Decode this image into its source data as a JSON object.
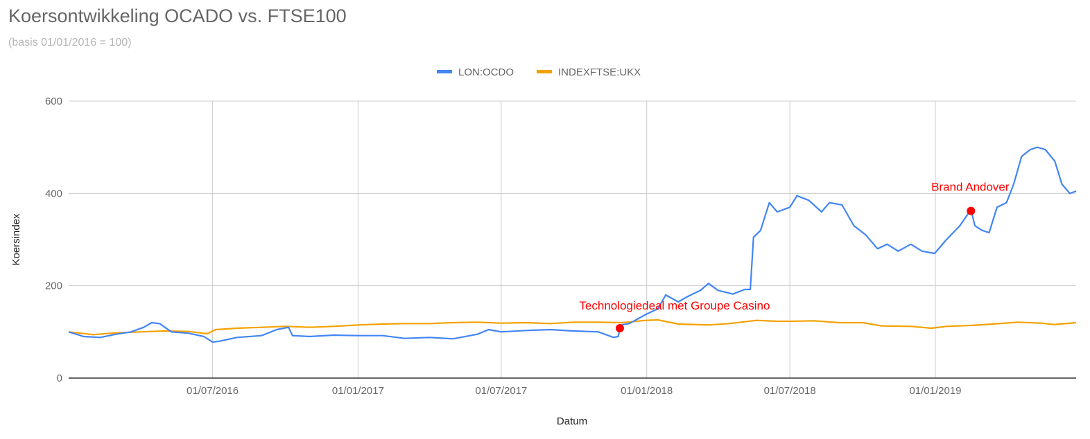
{
  "chart_data": {
    "type": "line",
    "title": "Koersontwikkeling OCADO vs. FTSE100",
    "subtitle": "(basis 01/01/2016 = 100)",
    "xlabel": "Datum",
    "ylabel": "Koersindex",
    "ylim": [
      0,
      600
    ],
    "yticks": [
      0,
      200,
      400,
      600
    ],
    "xlim": [
      "2016-01-01",
      "2019-06-28"
    ],
    "xticks": [
      {
        "date": "2016-07-01",
        "label": "01/07/2016"
      },
      {
        "date": "2017-01-01",
        "label": "01/01/2017"
      },
      {
        "date": "2017-07-01",
        "label": "01/07/2017"
      },
      {
        "date": "2018-01-01",
        "label": "01/01/2018"
      },
      {
        "date": "2018-07-01",
        "label": "01/07/2018"
      },
      {
        "date": "2019-01-01",
        "label": "01/01/2019"
      }
    ],
    "grid": true,
    "legend_position": "top",
    "series": [
      {
        "name": "LON:OCDO",
        "color": "#4285f4",
        "points": [
          [
            "2016-01-01",
            100
          ],
          [
            "2016-01-20",
            90
          ],
          [
            "2016-02-10",
            88
          ],
          [
            "2016-03-01",
            95
          ],
          [
            "2016-03-20",
            100
          ],
          [
            "2016-04-05",
            110
          ],
          [
            "2016-04-15",
            120
          ],
          [
            "2016-04-25",
            118
          ],
          [
            "2016-05-10",
            100
          ],
          [
            "2016-06-01",
            97
          ],
          [
            "2016-06-20",
            90
          ],
          [
            "2016-07-01",
            78
          ],
          [
            "2016-07-10",
            80
          ],
          [
            "2016-08-01",
            88
          ],
          [
            "2016-09-01",
            92
          ],
          [
            "2016-09-20",
            105
          ],
          [
            "2016-10-05",
            110
          ],
          [
            "2016-10-10",
            92
          ],
          [
            "2016-11-01",
            90
          ],
          [
            "2016-12-01",
            93
          ],
          [
            "2017-01-01",
            92
          ],
          [
            "2017-02-01",
            92
          ],
          [
            "2017-03-01",
            86
          ],
          [
            "2017-04-01",
            88
          ],
          [
            "2017-05-01",
            85
          ],
          [
            "2017-06-01",
            95
          ],
          [
            "2017-06-15",
            105
          ],
          [
            "2017-07-01",
            100
          ],
          [
            "2017-08-01",
            103
          ],
          [
            "2017-09-01",
            105
          ],
          [
            "2017-10-01",
            102
          ],
          [
            "2017-11-01",
            100
          ],
          [
            "2017-11-20",
            88
          ],
          [
            "2017-11-26",
            90
          ],
          [
            "2017-11-29",
            115
          ],
          [
            "2017-12-10",
            118
          ],
          [
            "2017-12-31",
            138
          ],
          [
            "2018-01-15",
            150
          ],
          [
            "2018-01-25",
            180
          ],
          [
            "2018-02-10",
            165
          ],
          [
            "2018-02-20",
            175
          ],
          [
            "2018-03-10",
            190
          ],
          [
            "2018-03-20",
            205
          ],
          [
            "2018-04-01",
            190
          ],
          [
            "2018-04-20",
            182
          ],
          [
            "2018-05-05",
            192
          ],
          [
            "2018-05-12",
            192
          ],
          [
            "2018-05-16",
            305
          ],
          [
            "2018-05-25",
            320
          ],
          [
            "2018-06-05",
            380
          ],
          [
            "2018-06-15",
            360
          ],
          [
            "2018-07-01",
            370
          ],
          [
            "2018-07-10",
            395
          ],
          [
            "2018-07-25",
            385
          ],
          [
            "2018-08-10",
            360
          ],
          [
            "2018-08-20",
            380
          ],
          [
            "2018-09-05",
            375
          ],
          [
            "2018-09-20",
            330
          ],
          [
            "2018-10-05",
            310
          ],
          [
            "2018-10-20",
            280
          ],
          [
            "2018-11-01",
            290
          ],
          [
            "2018-11-15",
            275
          ],
          [
            "2018-12-01",
            290
          ],
          [
            "2018-12-15",
            275
          ],
          [
            "2018-12-31",
            270
          ],
          [
            "2019-01-15",
            300
          ],
          [
            "2019-02-01",
            330
          ],
          [
            "2019-02-15",
            365
          ],
          [
            "2019-02-20",
            330
          ],
          [
            "2019-03-01",
            320
          ],
          [
            "2019-03-10",
            315
          ],
          [
            "2019-03-20",
            370
          ],
          [
            "2019-04-01",
            380
          ],
          [
            "2019-04-10",
            420
          ],
          [
            "2019-04-20",
            480
          ],
          [
            "2019-05-01",
            495
          ],
          [
            "2019-05-10",
            500
          ],
          [
            "2019-05-20",
            495
          ],
          [
            "2019-06-01",
            470
          ],
          [
            "2019-06-10",
            420
          ],
          [
            "2019-06-20",
            400
          ],
          [
            "2019-06-28",
            405
          ]
        ]
      },
      {
        "name": "INDEXFTSE:UKX",
        "color": "#f4a100",
        "points": [
          [
            "2016-01-01",
            100
          ],
          [
            "2016-02-01",
            94
          ],
          [
            "2016-03-01",
            98
          ],
          [
            "2016-04-01",
            100
          ],
          [
            "2016-05-01",
            102
          ],
          [
            "2016-06-01",
            101
          ],
          [
            "2016-06-24",
            96
          ],
          [
            "2016-07-05",
            105
          ],
          [
            "2016-08-01",
            108
          ],
          [
            "2016-09-01",
            110
          ],
          [
            "2016-10-01",
            112
          ],
          [
            "2016-11-01",
            110
          ],
          [
            "2016-12-01",
            112
          ],
          [
            "2017-01-01",
            115
          ],
          [
            "2017-02-01",
            117
          ],
          [
            "2017-03-01",
            118
          ],
          [
            "2017-04-01",
            118
          ],
          [
            "2017-05-01",
            120
          ],
          [
            "2017-06-01",
            121
          ],
          [
            "2017-07-01",
            119
          ],
          [
            "2017-08-01",
            120
          ],
          [
            "2017-09-01",
            118
          ],
          [
            "2017-10-01",
            121
          ],
          [
            "2017-11-01",
            121
          ],
          [
            "2017-12-01",
            120
          ],
          [
            "2017-12-31",
            125
          ],
          [
            "2018-01-15",
            126
          ],
          [
            "2018-02-10",
            117
          ],
          [
            "2018-03-20",
            115
          ],
          [
            "2018-04-15",
            118
          ],
          [
            "2018-05-20",
            125
          ],
          [
            "2018-06-15",
            123
          ],
          [
            "2018-07-01",
            123
          ],
          [
            "2018-08-01",
            124
          ],
          [
            "2018-09-01",
            120
          ],
          [
            "2018-10-01",
            120
          ],
          [
            "2018-10-25",
            113
          ],
          [
            "2018-12-01",
            112
          ],
          [
            "2018-12-27",
            108
          ],
          [
            "2019-01-15",
            112
          ],
          [
            "2019-02-15",
            114
          ],
          [
            "2019-03-15",
            117
          ],
          [
            "2019-04-15",
            121
          ],
          [
            "2019-05-15",
            119
          ],
          [
            "2019-05-31",
            116
          ],
          [
            "2019-06-28",
            120
          ]
        ]
      }
    ],
    "annotations": [
      {
        "label": "Technologiedeal met Groupe Casino",
        "date": "2017-11-28",
        "value": 108,
        "color": "#ff0000"
      },
      {
        "label": "Brand Andover",
        "date": "2019-02-15",
        "value": 362,
        "color": "#ff0000"
      }
    ]
  }
}
